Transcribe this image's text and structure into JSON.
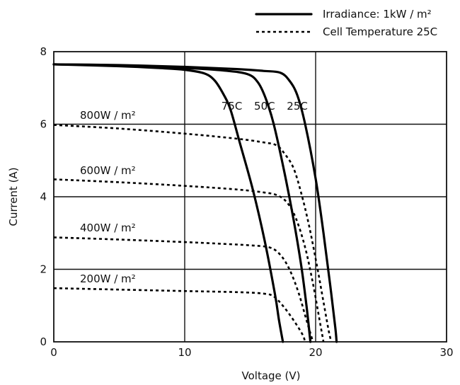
{
  "chart_data": {
    "type": "line",
    "title": "",
    "xlabel": "Voltage (V)",
    "ylabel": "Current (A)",
    "xlim": [
      0,
      30
    ],
    "ylim": [
      0,
      8
    ],
    "x_ticks": [
      "0",
      "10",
      "20",
      "30"
    ],
    "y_ticks": [
      "0",
      "2",
      "4",
      "6",
      "8"
    ],
    "grid": true,
    "legend": {
      "placement": "top-right",
      "entries": [
        {
          "label": "Irradiance: 1kW / m²",
          "style": "solid"
        },
        {
          "label": "Cell Temperature 25C",
          "style": "dotted"
        }
      ]
    },
    "series": [
      {
        "name": "25C",
        "group": "temperature",
        "style": "solid",
        "points": [
          [
            0,
            7.65
          ],
          [
            5,
            7.63
          ],
          [
            10,
            7.58
          ],
          [
            14,
            7.52
          ],
          [
            16,
            7.47
          ],
          [
            17.3,
            7.42
          ],
          [
            18,
            7.2
          ],
          [
            18.6,
            6.8
          ],
          [
            19.2,
            6.0
          ],
          [
            20,
            4.5
          ],
          [
            20.6,
            3.0
          ],
          [
            21.1,
            1.6
          ],
          [
            21.5,
            0.4
          ],
          [
            21.6,
            0
          ]
        ]
      },
      {
        "name": "50C",
        "group": "temperature",
        "style": "solid",
        "points": [
          [
            0,
            7.65
          ],
          [
            5,
            7.62
          ],
          [
            10,
            7.55
          ],
          [
            13,
            7.48
          ],
          [
            14.8,
            7.38
          ],
          [
            15.6,
            7.15
          ],
          [
            16.2,
            6.7
          ],
          [
            16.8,
            6.0
          ],
          [
            17.6,
            4.7
          ],
          [
            18.3,
            3.4
          ],
          [
            18.9,
            2.1
          ],
          [
            19.3,
            1.0
          ],
          [
            19.6,
            0
          ]
        ]
      },
      {
        "name": "75C",
        "group": "temperature",
        "style": "solid",
        "points": [
          [
            0,
            7.65
          ],
          [
            5,
            7.6
          ],
          [
            8,
            7.55
          ],
          [
            10,
            7.5
          ],
          [
            11.5,
            7.4
          ],
          [
            12.3,
            7.2
          ],
          [
            13,
            6.8
          ],
          [
            13.5,
            6.4
          ],
          [
            14.2,
            5.5
          ],
          [
            15.2,
            4.2
          ],
          [
            16.1,
            2.8
          ],
          [
            16.9,
            1.3
          ],
          [
            17.2,
            0.6
          ],
          [
            17.5,
            0
          ]
        ]
      },
      {
        "name": "800W / m²",
        "group": "irradiance",
        "style": "dotted",
        "points": [
          [
            0,
            5.98
          ],
          [
            5,
            5.88
          ],
          [
            10,
            5.74
          ],
          [
            14,
            5.6
          ],
          [
            16,
            5.5
          ],
          [
            17,
            5.42
          ],
          [
            17.6,
            5.2
          ],
          [
            18.3,
            4.8
          ],
          [
            18.9,
            4.1
          ],
          [
            19.5,
            3.2
          ],
          [
            20.1,
            2.1
          ],
          [
            20.6,
            1.1
          ],
          [
            21.0,
            0.3
          ],
          [
            21.2,
            0
          ]
        ]
      },
      {
        "name": "600W / m²",
        "group": "irradiance",
        "style": "dotted",
        "points": [
          [
            0,
            4.48
          ],
          [
            5,
            4.4
          ],
          [
            10,
            4.3
          ],
          [
            14,
            4.2
          ],
          [
            16,
            4.12
          ],
          [
            17,
            4.05
          ],
          [
            17.8,
            3.85
          ],
          [
            18.5,
            3.4
          ],
          [
            19.2,
            2.6
          ],
          [
            19.8,
            1.6
          ],
          [
            20.3,
            0.6
          ],
          [
            20.6,
            0
          ]
        ]
      },
      {
        "name": "400W / m²",
        "group": "irradiance",
        "style": "dotted",
        "points": [
          [
            0,
            2.88
          ],
          [
            5,
            2.82
          ],
          [
            10,
            2.75
          ],
          [
            13,
            2.7
          ],
          [
            15,
            2.66
          ],
          [
            16.5,
            2.6
          ],
          [
            17.3,
            2.4
          ],
          [
            18,
            2.0
          ],
          [
            18.7,
            1.35
          ],
          [
            19.3,
            0.6
          ],
          [
            19.8,
            0
          ]
        ]
      },
      {
        "name": "200W / m²",
        "group": "irradiance",
        "style": "dotted",
        "points": [
          [
            0,
            1.48
          ],
          [
            5,
            1.44
          ],
          [
            10,
            1.4
          ],
          [
            14,
            1.37
          ],
          [
            16,
            1.33
          ],
          [
            16.8,
            1.25
          ],
          [
            17.6,
            0.95
          ],
          [
            18.4,
            0.55
          ],
          [
            19.0,
            0.2
          ],
          [
            19.2,
            0
          ]
        ]
      }
    ],
    "annotations": [
      {
        "text": "800W / m²",
        "x": 2,
        "y": 6.15
      },
      {
        "text": "600W / m²",
        "x": 2,
        "y": 4.62
      },
      {
        "text": "400W / m²",
        "x": 2,
        "y": 3.04
      },
      {
        "text": "200W / m²",
        "x": 2,
        "y": 1.64
      },
      {
        "text": "75C",
        "x": 12.8,
        "y": 6.4
      },
      {
        "text": "50C",
        "x": 15.3,
        "y": 6.4
      },
      {
        "text": "25C",
        "x": 17.8,
        "y": 6.4
      }
    ]
  }
}
